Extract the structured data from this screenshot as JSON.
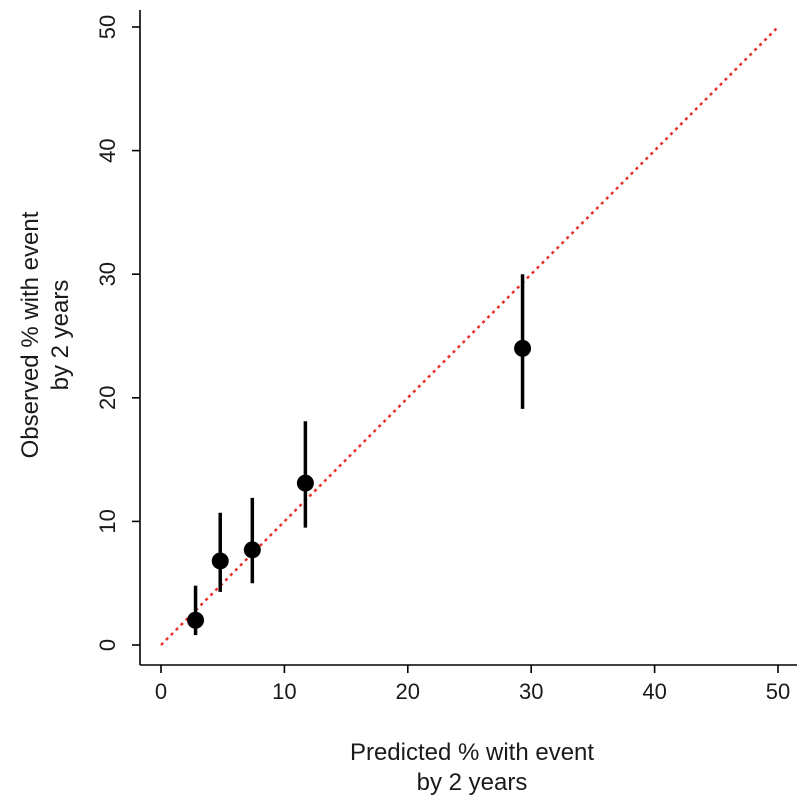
{
  "chart_data": {
    "type": "scatter",
    "title": "",
    "xlabel": [
      "Predicted % with event",
      "by 2 years"
    ],
    "ylabel": [
      "Observed % with event",
      "by 2 years"
    ],
    "xlim": [
      0,
      50
    ],
    "ylim": [
      0,
      50
    ],
    "xticks": [
      "0",
      "10",
      "20",
      "30",
      "40",
      "50"
    ],
    "yticks": [
      "0",
      "10",
      "20",
      "30",
      "40",
      "50"
    ],
    "grid": false,
    "reference_line": {
      "style": "dotted",
      "color": "#e8302a",
      "from": [
        0,
        0
      ],
      "to": [
        50,
        50
      ]
    },
    "point_color": "#000000",
    "points": [
      {
        "x": 2.8,
        "y": 2.0,
        "lo": 0.8,
        "hi": 4.8
      },
      {
        "x": 4.8,
        "y": 6.8,
        "lo": 4.3,
        "hi": 10.7
      },
      {
        "x": 7.4,
        "y": 7.7,
        "lo": 5.0,
        "hi": 11.9
      },
      {
        "x": 11.7,
        "y": 13.1,
        "lo": 9.5,
        "hi": 18.1
      },
      {
        "x": 29.3,
        "y": 24.0,
        "lo": 19.1,
        "hi": 30.0
      }
    ]
  }
}
